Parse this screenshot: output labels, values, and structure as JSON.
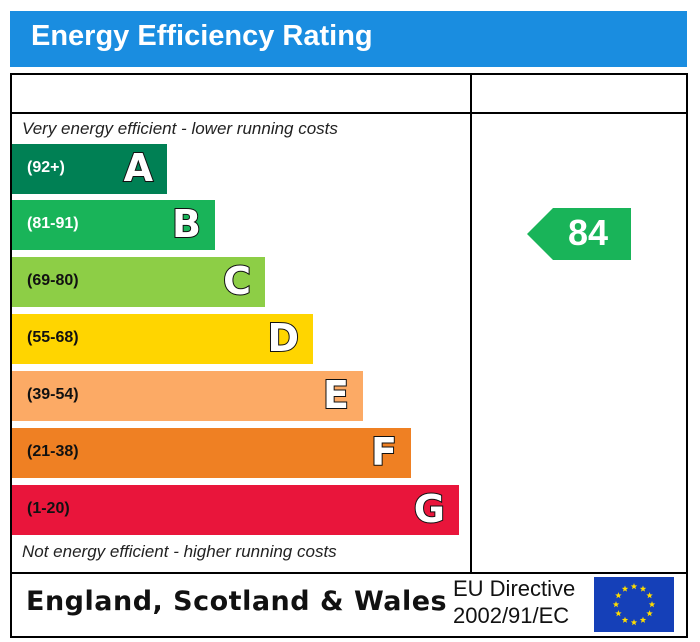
{
  "header": {
    "title": "Energy Efficiency Rating"
  },
  "notes": {
    "top": "Very energy efficient - lower running costs",
    "bottom": "Not energy efficient - higher running costs"
  },
  "chart_data": {
    "type": "bar",
    "title": "Energy Efficiency Rating",
    "categories": [
      "A",
      "B",
      "C",
      "D",
      "E",
      "F",
      "G"
    ],
    "ranges": [
      "(92+)",
      "(81-91)",
      "(69-80)",
      "(55-68)",
      "(39-54)",
      "(21-38)",
      "(1-20)"
    ],
    "colors": [
      "#008054",
      "#19b459",
      "#8dce46",
      "#ffd500",
      "#fcaa65",
      "#ef8023",
      "#e9153b"
    ],
    "range_text_colors": [
      "#ffffff",
      "#ffffff",
      "#111111",
      "#111111",
      "#111111",
      "#111111",
      "#111111"
    ],
    "current_rating": {
      "value": 84,
      "band": "B",
      "color": "#19b459"
    }
  },
  "footer": {
    "country": "England, Scotland & Wales",
    "directive_line1": "EU Directive",
    "directive_line2": "2002/91/EC",
    "flag_icon": "eu-flag-icon"
  }
}
